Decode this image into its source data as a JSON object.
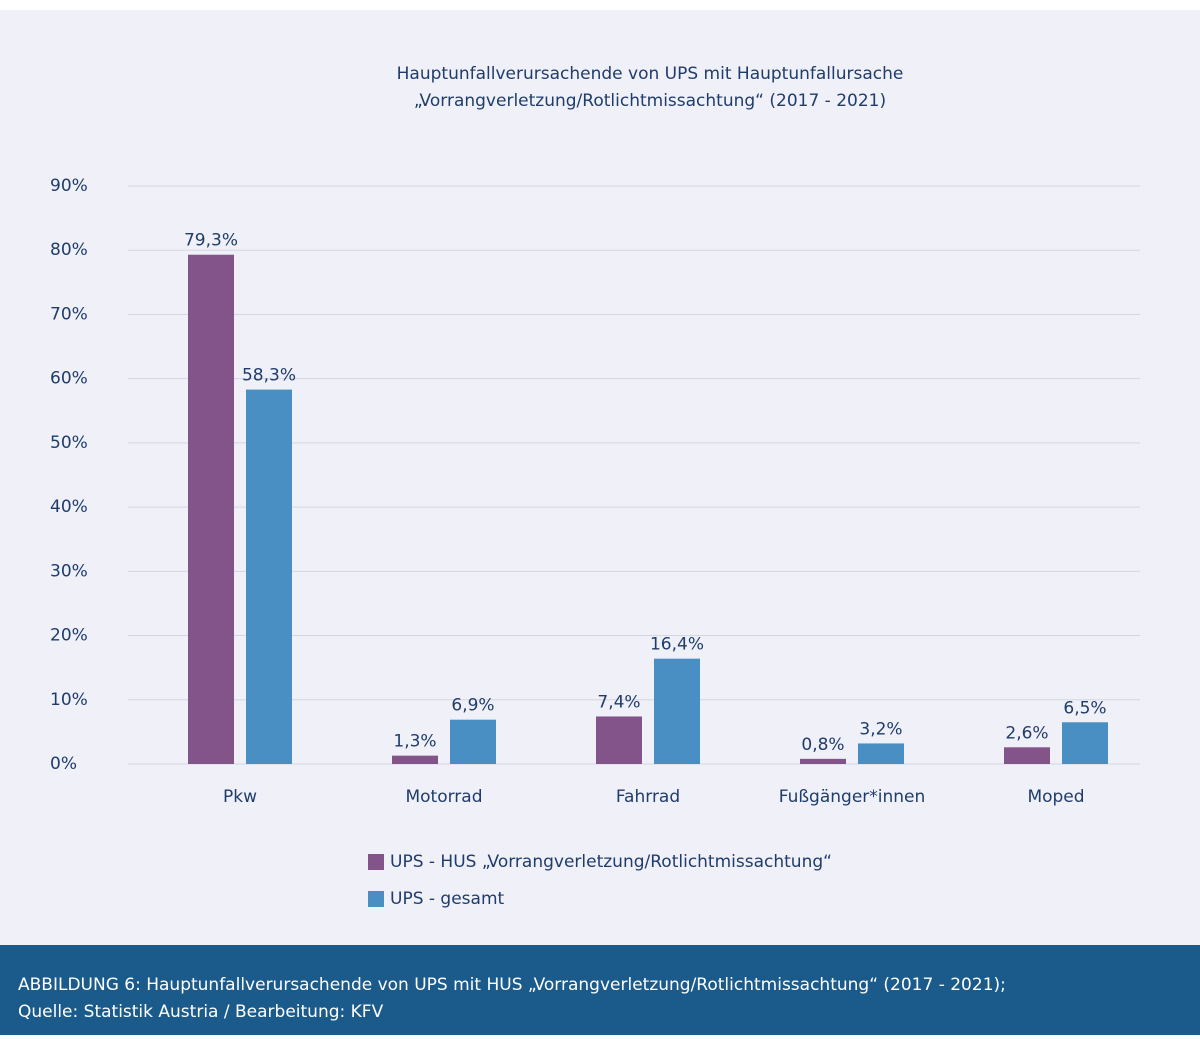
{
  "chart_data": {
    "type": "bar",
    "title": [
      "Hauptunfallverursachende von UPS mit Hauptunfallursache",
      "„Vorrangverletzung/Rotlichtmissachtung“ (2017 - 2021)"
    ],
    "categories": [
      "Pkw",
      "Motorrad",
      "Fahrrad",
      "Fußgänger*innen",
      "Moped"
    ],
    "series": [
      {
        "name": "UPS - HUS „Vorrangverletzung/Rotlichtmissachtung“",
        "color": "#835489",
        "values": [
          79.3,
          1.3,
          7.4,
          0.8,
          2.6
        ],
        "value_labels": [
          "79,3%",
          "1,3%",
          "7,4%",
          "0,8%",
          "2,6%"
        ]
      },
      {
        "name": "UPS - gesamt",
        "color": "#4a8fc4",
        "values": [
          58.3,
          6.9,
          16.4,
          3.2,
          6.5
        ],
        "value_labels": [
          "58,3%",
          "6,9%",
          "16,4%",
          "3,2%",
          "6,5%"
        ]
      }
    ],
    "ylim": [
      0,
      90
    ],
    "yticks": [
      {
        "value": 0,
        "label": "0%"
      },
      {
        "value": 10,
        "label": "10%"
      },
      {
        "value": 20,
        "label": "20%"
      },
      {
        "value": 30,
        "label": "30%"
      },
      {
        "value": 40,
        "label": "40%"
      },
      {
        "value": 50,
        "label": "50%"
      },
      {
        "value": 60,
        "label": "60%"
      },
      {
        "value": 70,
        "label": "70%"
      },
      {
        "value": 80,
        "label": "80%"
      },
      {
        "value": 90,
        "label": "90%"
      }
    ],
    "grid": true,
    "caption": [
      "ABBILDUNG 6: Hauptunfallverursachende von UPS mit HUS „Vorrangverletzung/Rotlichtmissachtung“ (2017 - 2021);",
      "Quelle: Statistik Austria / Bearbeitung: KFV"
    ]
  }
}
